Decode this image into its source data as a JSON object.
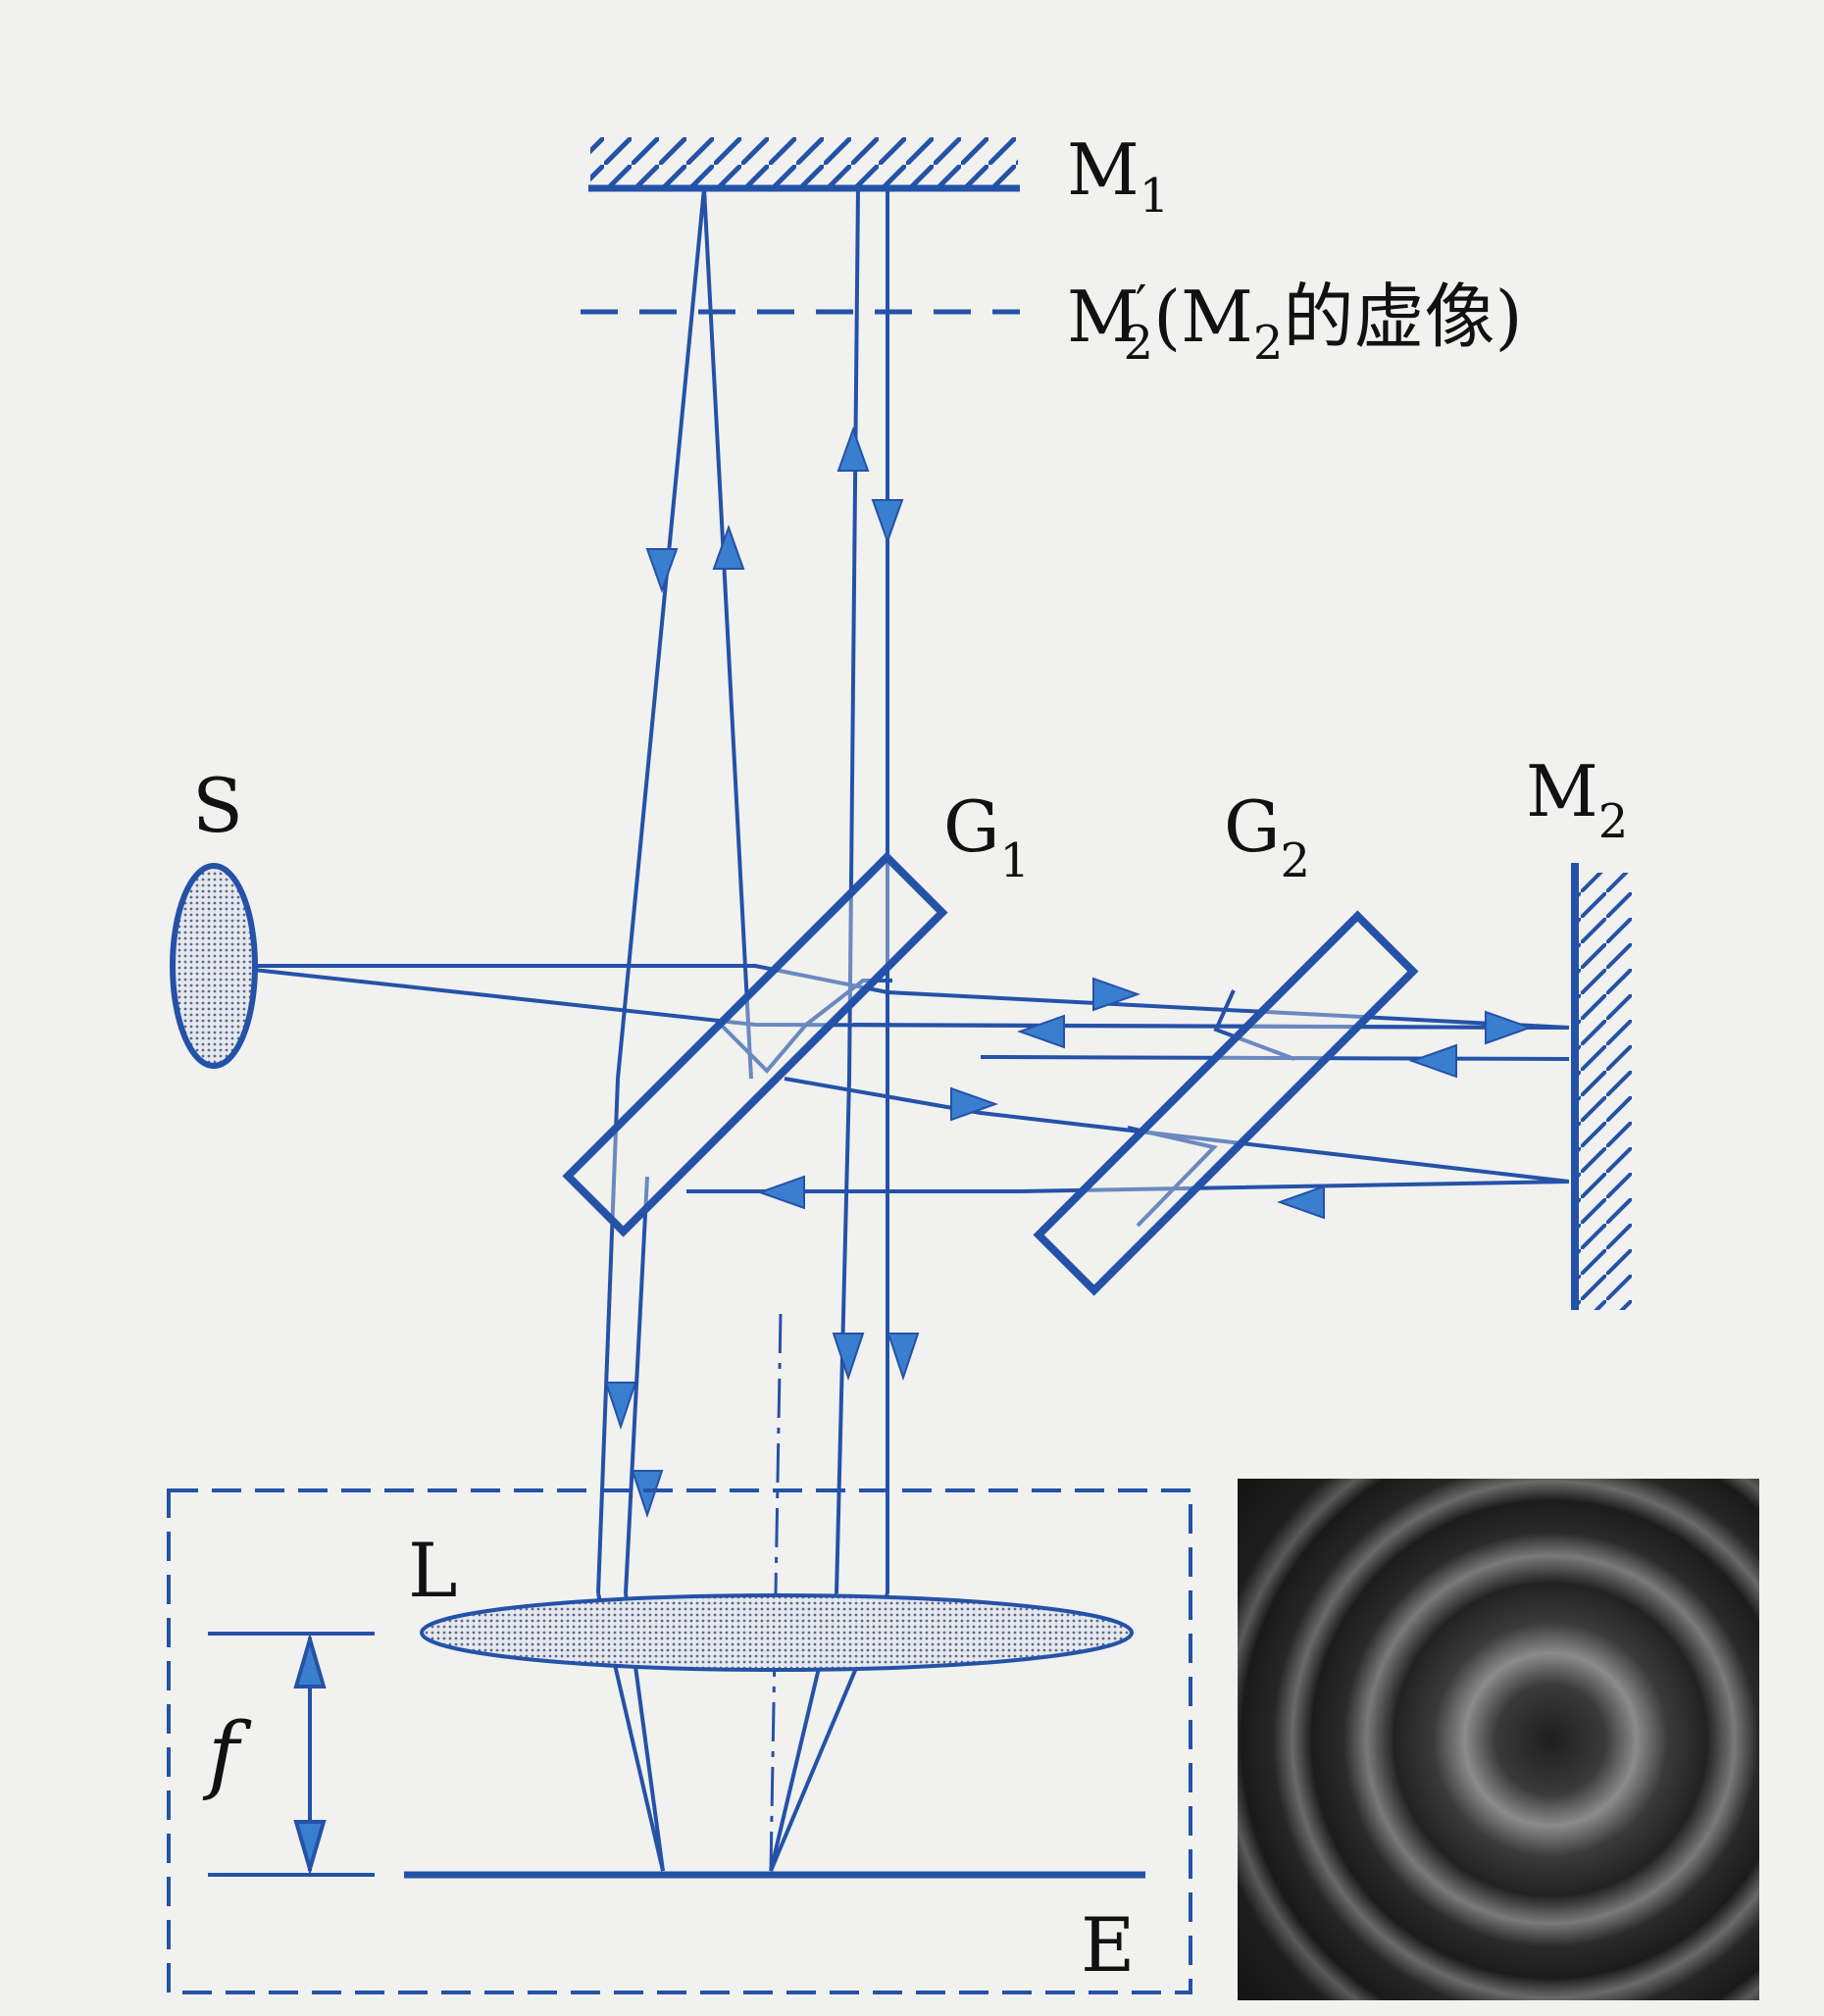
{
  "labels": {
    "m1": "M",
    "m1_sub": "1",
    "m2_virtual_prefix": "M",
    "m2_virtual_prime": "′",
    "m2_virtual_sub": "2",
    "m2_virtual_note_open": "(M",
    "m2_virtual_note_sub": "2",
    "m2_virtual_note_rest": "的虚像)",
    "source": "S",
    "g1": "G",
    "g1_sub": "1",
    "g2": "G",
    "g2_sub": "2",
    "m2": "M",
    "m2_sub": "2",
    "lens": "L",
    "focal": "f",
    "screen": "E"
  },
  "colors": {
    "line": "#2452a8",
    "arrow": "#3a7fcf",
    "text": "#111111",
    "background": "#f1f1ef",
    "fringe_dark": "#2a2a2a",
    "fringe_light": "#8a8a8a"
  }
}
